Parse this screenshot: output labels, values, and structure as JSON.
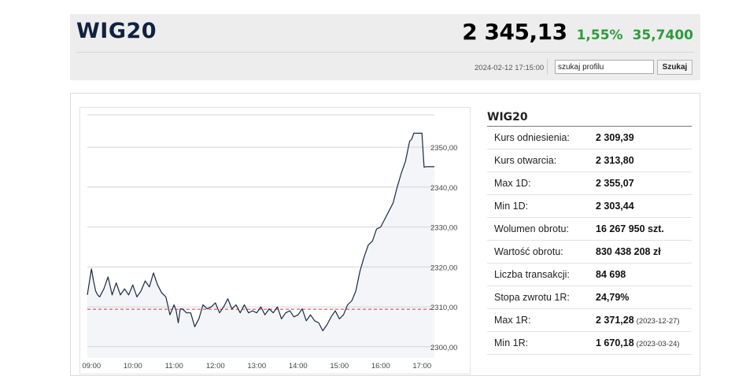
{
  "header": {
    "title": "WIG20",
    "price": "2 345,13",
    "change_pct": "1,55%",
    "change_abs": "35,7400",
    "timestamp": "2024-02-12 17:15:00",
    "search_value": "szukaj profilu",
    "search_button": "Szukaj"
  },
  "colors": {
    "accent_green": "#2e9b3c",
    "title_navy": "#0f2240",
    "reference_line": "#d9333a",
    "series_line": "#1a2a44",
    "area_fill": "#f3f5f8"
  },
  "info": {
    "title": "WIG20",
    "rows": [
      {
        "label": "Kurs odniesienia:",
        "value": "2 309,39",
        "date": ""
      },
      {
        "label": "Kurs otwarcia:",
        "value": "2 313,80",
        "date": ""
      },
      {
        "label": "Max 1D:",
        "value": "2 355,07",
        "date": ""
      },
      {
        "label": "Min 1D:",
        "value": "2 303,44",
        "date": ""
      },
      {
        "label": "Wolumen obrotu:",
        "value": "16 267 950 szt.",
        "date": ""
      },
      {
        "label": "Wartość obrotu:",
        "value": "830 438 208 zł",
        "date": ""
      },
      {
        "label": "Liczba transakcji:",
        "value": "84 698",
        "date": ""
      },
      {
        "label": "Stopa zwrotu 1R:",
        "value": "24,79%",
        "date": ""
      },
      {
        "label": "Max 1R:",
        "value": "2 371,28",
        "date": "(2023-12-27)"
      },
      {
        "label": "Min 1R:",
        "value": "1 670,18",
        "date": "(2023-03-24)"
      }
    ]
  },
  "chart_data": {
    "type": "line",
    "x_ticks": [
      "09:00",
      "10:00",
      "11:00",
      "12:00",
      "13:00",
      "14:00",
      "15:00",
      "16:00",
      "17:00"
    ],
    "y_ticks": [
      "2350,00",
      "2340,00",
      "2330,00",
      "2320,00",
      "2310,00",
      "2300,00"
    ],
    "y_tick_values": [
      2350,
      2340,
      2330,
      2320,
      2310,
      2300
    ],
    "xlim": [
      8.9,
      17.3
    ],
    "ylim": [
      2297.2,
      2359.1
    ],
    "reference_value": 2309.39,
    "grid": true,
    "series": [
      {
        "x": [
          8.9,
          9.0,
          9.05,
          9.1,
          9.15,
          9.2,
          9.3,
          9.4,
          9.5,
          9.55,
          9.6,
          9.7,
          9.8,
          9.9,
          10.0,
          10.1,
          10.2,
          10.3,
          10.4,
          10.5,
          10.6,
          10.7,
          10.8,
          10.9,
          11.0,
          11.05,
          11.1,
          11.15,
          11.2,
          11.3,
          11.4,
          11.5,
          11.6,
          11.7,
          11.8,
          11.9,
          12.0,
          12.1,
          12.2,
          12.3,
          12.4,
          12.5,
          12.6,
          12.7,
          12.8,
          12.9,
          13.0,
          13.1,
          13.2,
          13.3,
          13.4,
          13.5,
          13.6,
          13.7,
          13.8,
          13.9,
          14.0,
          14.1,
          14.2,
          14.3,
          14.4,
          14.5,
          14.6,
          14.7,
          14.8,
          14.9,
          15.0,
          15.1,
          15.2,
          15.3,
          15.4,
          15.5,
          15.6,
          15.7,
          15.8,
          15.9,
          16.0,
          16.1,
          16.2,
          16.3,
          16.4,
          16.5,
          16.6,
          16.7,
          16.75,
          16.8,
          16.85,
          16.9,
          17.0,
          17.05,
          17.1,
          17.3
        ],
        "y": [
          2313.0,
          2319.5,
          2316.5,
          2314.0,
          2313.0,
          2312.5,
          2314.5,
          2317.5,
          2313.0,
          2314.5,
          2316.0,
          2313.0,
          2314.5,
          2313.0,
          2315.5,
          2312.5,
          2314.0,
          2316.5,
          2315.0,
          2318.5,
          2315.5,
          2313.5,
          2312.5,
          2308.0,
          2310.5,
          2309.0,
          2306.0,
          2309.5,
          2309.5,
          2308.5,
          2308.5,
          2305.0,
          2307.0,
          2310.5,
          2309.5,
          2310.0,
          2311.0,
          2308.5,
          2310.0,
          2312.0,
          2309.5,
          2310.5,
          2308.5,
          2310.5,
          2308.5,
          2309.0,
          2308.5,
          2310.0,
          2308.0,
          2309.5,
          2308.5,
          2310.0,
          2307.0,
          2308.5,
          2309.0,
          2307.5,
          2308.0,
          2309.5,
          2306.5,
          2308.0,
          2306.5,
          2306.0,
          2304.0,
          2305.5,
          2307.5,
          2309.0,
          2307.0,
          2308.0,
          2310.5,
          2311.5,
          2314.0,
          2319.0,
          2322.5,
          2325.5,
          2326.5,
          2329.5,
          2330.0,
          2332.0,
          2334.0,
          2336.0,
          2340.0,
          2343.5,
          2346.5,
          2351.5,
          2352.0,
          2353.5,
          2353.5,
          2353.5,
          2353.5,
          2345.0,
          2345.13,
          2345.13
        ]
      }
    ]
  }
}
